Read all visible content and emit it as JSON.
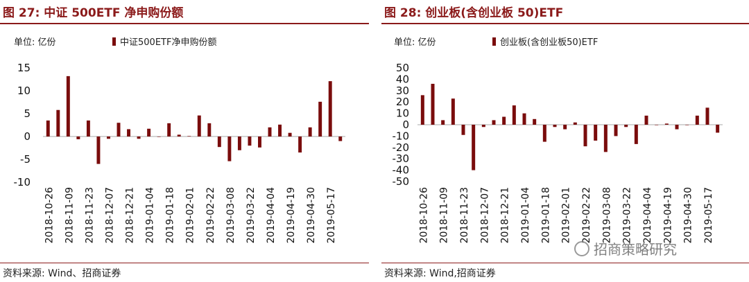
{
  "charts": [
    {
      "title": "图 27:  中证 500ETF 净申购份额",
      "unit": "单位:  亿份",
      "legend": "中证500ETF净申购份额",
      "source": "资料来源:  Wind、招商证券"
    },
    {
      "title": "图 28:  创业板(含创业板 50)ETF",
      "unit": "单位:  亿份",
      "legend": "创业板(含创业板50)ETF",
      "source": "资料来源:  Wind,招商证券"
    }
  ],
  "watermark": "招商策略研究",
  "colors": {
    "bar": "#7a0c0c",
    "title": "#8b1a1a",
    "axis": "#aaaaaa"
  },
  "chart_data": [
    {
      "type": "bar",
      "title": "图 27:  中证 500ETF 净申购份额",
      "ylabel": "单位:  亿份",
      "ylim": [
        -10,
        15
      ],
      "yticks": [
        15,
        10,
        5,
        0,
        -5,
        -10
      ],
      "xtick_labels": [
        "2018-10-26",
        "2018-11-09",
        "2018-11-23",
        "2018-12-07",
        "2018-12-21",
        "2019-01-04",
        "2019-01-18",
        "2019-02-01",
        "2019-02-22",
        "2019-03-08",
        "2019-03-22",
        "2019-04-04",
        "2019-04-19",
        "2019-04-30",
        "2019-05-17"
      ],
      "legend_position": "top",
      "series": [
        {
          "name": "中证500ETF净申购份额",
          "values": [
            3.5,
            5.8,
            13.2,
            -0.6,
            3.5,
            -6.0,
            -0.5,
            3.0,
            1.6,
            -0.5,
            1.7,
            0,
            2.9,
            0.4,
            0.1,
            4.6,
            2.9,
            -2.3,
            -5.4,
            -3.0,
            -2.0,
            -2.4,
            2.0,
            2.6,
            0.8,
            -3.5,
            2.0,
            7.6,
            12.1,
            -1.0
          ]
        }
      ]
    },
    {
      "type": "bar",
      "title": "图 28:  创业板(含创业板 50)ETF",
      "ylabel": "单位:  亿份",
      "ylim": [
        -50,
        50
      ],
      "yticks": [
        50,
        40,
        30,
        20,
        10,
        0,
        -10,
        -20,
        -30,
        -40,
        -50
      ],
      "xtick_labels": [
        "2018-10-26",
        "2018-11-09",
        "2018-11-23",
        "2018-12-07",
        "2018-12-21",
        "2019-01-04",
        "2019-01-18",
        "2019-02-01",
        "2019-02-22",
        "2019-03-08",
        "2019-03-22",
        "2019-04-04",
        "2019-04-19",
        "2019-04-30",
        "2019-05-17"
      ],
      "legend_position": "top",
      "series": [
        {
          "name": "创业板(含创业板50)ETF",
          "values": [
            26,
            36,
            4,
            23,
            -9,
            -40,
            -2,
            4,
            7,
            17,
            10,
            5,
            -15,
            -2,
            -4,
            2,
            -19,
            -14,
            -24,
            -10,
            -2,
            -17,
            8,
            0,
            1,
            -4,
            0,
            8,
            15,
            -7
          ]
        }
      ]
    }
  ]
}
